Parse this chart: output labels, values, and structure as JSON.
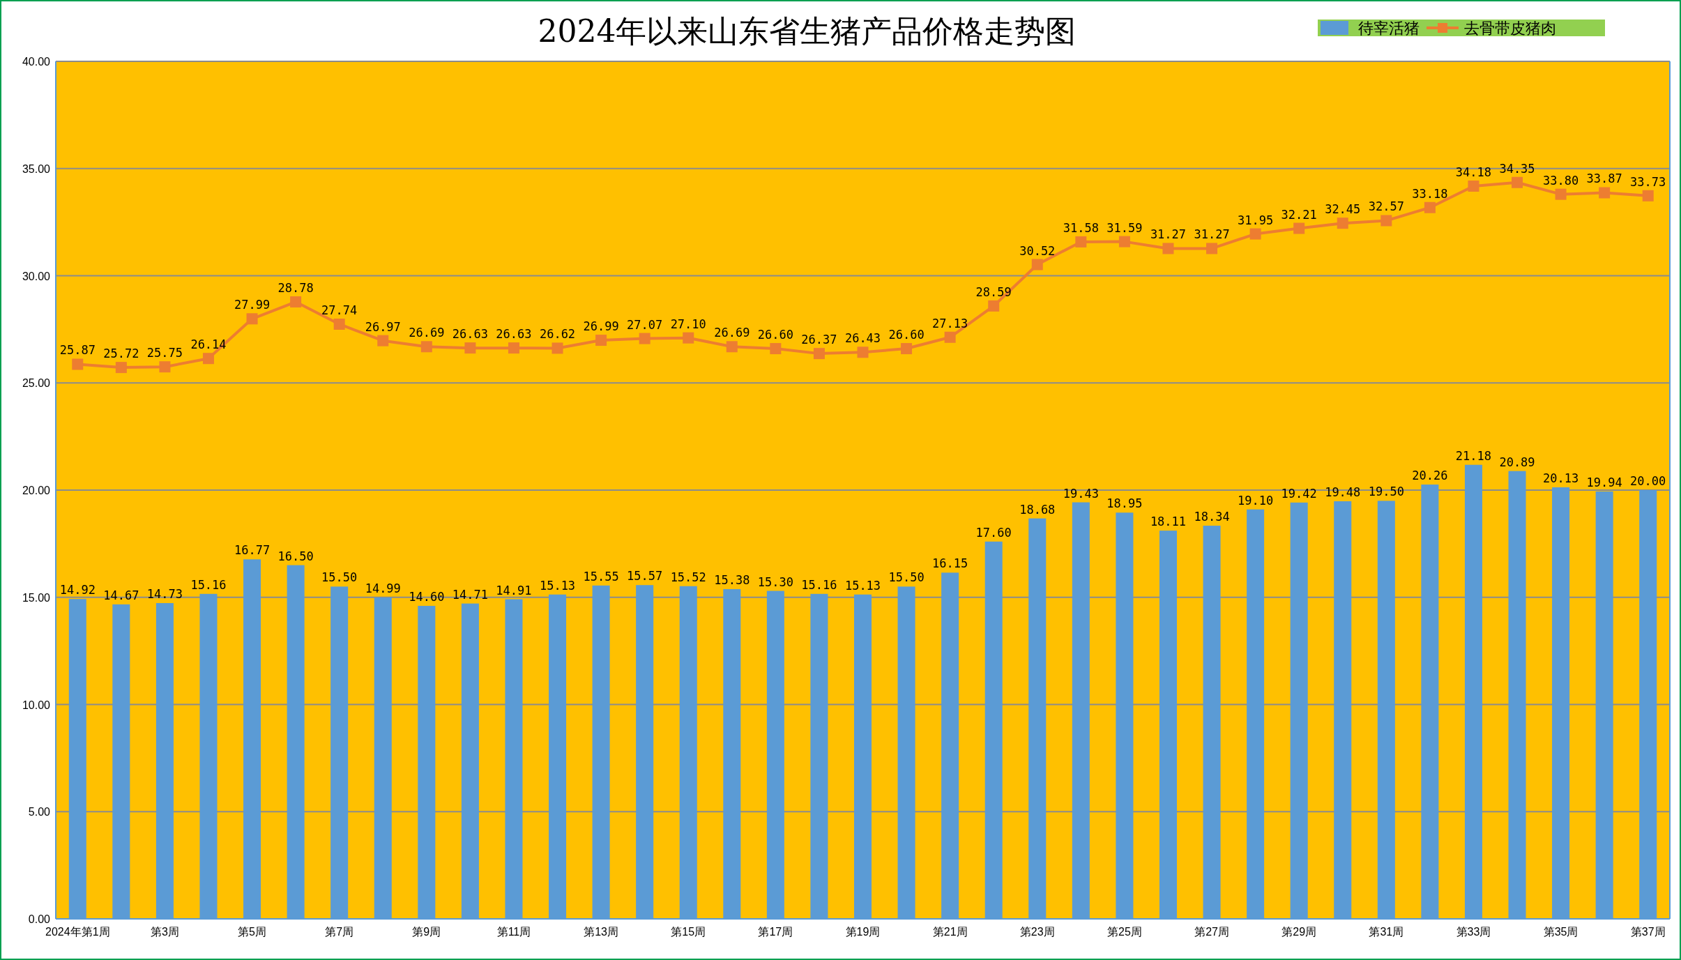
{
  "chart_data": {
    "type": "bar",
    "title": "2024年以来山东省生猪产品价格走势图",
    "categories": [
      "2024年第1周",
      null,
      "第3周",
      null,
      "第5周",
      null,
      "第7周",
      null,
      "第9周",
      null,
      "第11周",
      null,
      "第13周",
      null,
      "第15周",
      null,
      "第17周",
      null,
      "第19周",
      null,
      "第21周",
      null,
      "第23周",
      null,
      "第25周",
      null,
      "第27周",
      null,
      "第29周",
      null,
      "第31周",
      null,
      "第33周",
      null,
      "第35周",
      null,
      "第37周"
    ],
    "series": [
      {
        "name": "待宰活猪",
        "color": "#5b9bd5",
        "values": [
          14.92,
          14.67,
          14.73,
          15.16,
          16.77,
          16.5,
          15.5,
          14.99,
          14.6,
          14.71,
          14.91,
          15.13,
          15.55,
          15.57,
          15.52,
          15.38,
          15.3,
          15.16,
          15.13,
          15.5,
          16.15,
          17.6,
          18.68,
          19.43,
          18.95,
          18.11,
          18.34,
          19.1,
          19.42,
          19.48,
          19.5,
          20.26,
          21.18,
          20.89,
          20.13,
          19.94,
          20.0
        ],
        "value_labels": [
          "14.92",
          "14.67",
          "14.73",
          "15.16",
          "16.77",
          "16.50",
          "15.50",
          "14.99",
          "14.60",
          "14.71",
          "14.91",
          "15.13",
          "15.55",
          "15.57",
          "15.52",
          "15.38",
          "15.30",
          "15.16",
          "15.13",
          "15.50",
          "16.15",
          "17.60",
          "18.68",
          "19.43",
          "18.95",
          "18.11",
          "18.34",
          "19.10",
          "19.42",
          "19.48",
          "19.50",
          "20.26",
          "21.18",
          "20.89",
          "20.13",
          "19.94",
          "20.00"
        ]
      },
      {
        "name": "去骨带皮猪肉",
        "type": "line",
        "color": "#ed7d31",
        "marker": "square",
        "values": [
          25.87,
          25.72,
          25.75,
          26.14,
          27.99,
          28.78,
          27.74,
          26.97,
          26.69,
          26.63,
          26.63,
          26.62,
          26.99,
          27.07,
          27.1,
          26.69,
          26.6,
          26.37,
          26.43,
          26.6,
          27.13,
          28.59,
          30.52,
          31.58,
          31.59,
          31.27,
          31.27,
          31.95,
          32.21,
          32.45,
          32.57,
          33.18,
          34.18,
          34.35,
          33.8,
          33.87,
          33.73
        ],
        "value_labels": [
          "25.87",
          "25.72",
          "25.75",
          "26.14",
          "27.99",
          "28.78",
          "27.74",
          "26.97",
          "26.69",
          "26.63",
          "26.63",
          "26.62",
          "26.99",
          "27.07",
          "27.10",
          "26.69",
          "26.60",
          "26.37",
          "26.43",
          "26.60",
          "27.13",
          "28.59",
          "30.52",
          "31.58",
          "31.59",
          "31.27",
          "31.27",
          "31.95",
          "32.21",
          "32.45",
          "32.57",
          "33.18",
          "34.18",
          "34.35",
          "33.80",
          "33.87",
          "33.73"
        ]
      }
    ],
    "ylim": [
      0,
      40
    ],
    "yticks": [
      {
        "value": 0,
        "label": "0.00"
      },
      {
        "value": 5,
        "label": "5.00"
      },
      {
        "value": 10,
        "label": "10.00"
      },
      {
        "value": 15,
        "label": "15.00"
      },
      {
        "value": 20,
        "label": "20.00"
      },
      {
        "value": 25,
        "label": "25.00"
      },
      {
        "value": 30,
        "label": "30.00"
      },
      {
        "value": 35,
        "label": "35.00"
      },
      {
        "value": 40,
        "label": "40.00"
      }
    ],
    "grid": "y",
    "legend": "top right"
  }
}
